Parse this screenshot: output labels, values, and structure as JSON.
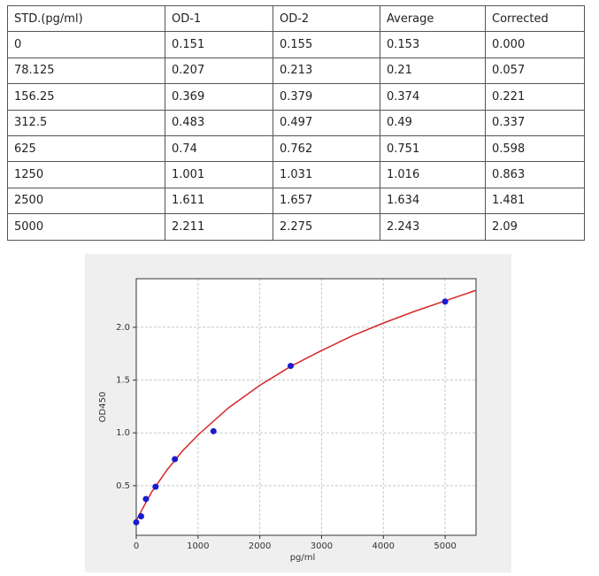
{
  "table": {
    "header": [
      "STD.(pg/ml)",
      "OD-1",
      "OD-2",
      "Average",
      "Corrected"
    ],
    "rows": [
      [
        "0",
        "0.151",
        "0.155",
        "0.153",
        "0.000"
      ],
      [
        "78.125",
        "0.207",
        "0.213",
        "0.21",
        "0.057"
      ],
      [
        "156.25",
        "0.369",
        "0.379",
        "0.374",
        "0.221"
      ],
      [
        "312.5",
        "0.483",
        "0.497",
        "0.49",
        "0.337"
      ],
      [
        "625",
        "0.74",
        "0.762",
        "0.751",
        "0.598"
      ],
      [
        "1250",
        "1.001",
        "1.031",
        "1.016",
        "0.863"
      ],
      [
        "2500",
        "1.611",
        "1.657",
        "1.634",
        "1.481"
      ],
      [
        "5000",
        "2.211",
        "2.275",
        "2.243",
        "2.09"
      ]
    ]
  },
  "chart_data": {
    "type": "scatter",
    "xlabel": "pg/ml",
    "ylabel": "OD450",
    "xlim": [
      0,
      5500
    ],
    "ylim": [
      0.03,
      2.46
    ],
    "xticks": [
      0,
      1000,
      2000,
      3000,
      4000,
      5000
    ],
    "yticks": [
      0.5,
      {
        "value": 1.0,
        "label": "1.0"
      },
      1.5,
      {
        "value": 2.0,
        "label": "2.0"
      }
    ],
    "grid": true,
    "series": [
      {
        "type": "scatter",
        "color": "#1a1ad0",
        "x": [
          0,
          78.125,
          156.25,
          312.5,
          625,
          1250,
          2500,
          5000
        ],
        "values": [
          0.153,
          0.21,
          0.374,
          0.49,
          0.751,
          1.016,
          1.634,
          2.243
        ]
      },
      {
        "type": "line",
        "color": "#d62728",
        "x": [
          0,
          100,
          250,
          500,
          750,
          1000,
          1500,
          2000,
          2500,
          3000,
          3500,
          4000,
          4500,
          5000,
          5500
        ],
        "values": [
          0.17,
          0.28,
          0.44,
          0.65,
          0.83,
          0.98,
          1.24,
          1.45,
          1.63,
          1.78,
          1.92,
          2.04,
          2.15,
          2.25,
          2.35
        ]
      }
    ]
  }
}
